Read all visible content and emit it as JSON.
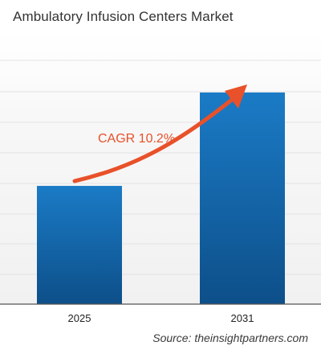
{
  "chart_data": {
    "type": "bar",
    "title": "Ambulatory Infusion Centers Market",
    "categories": [
      "2025",
      "2031"
    ],
    "values": [
      1.0,
      1.79
    ],
    "ylim": [
      0,
      2.3
    ],
    "grid": true,
    "annotation": {
      "label": "CAGR 10.2%",
      "color": "#e8512a"
    },
    "colors": {
      "bar_top": "#1b7bc6",
      "bar_bottom": "#0d4f89",
      "grid": "#e3e3e3",
      "plot_background": "#f3f3f3",
      "axis": "#555555",
      "arrow": "#e8512a"
    },
    "source": "Source: theinsightpartners.com"
  }
}
